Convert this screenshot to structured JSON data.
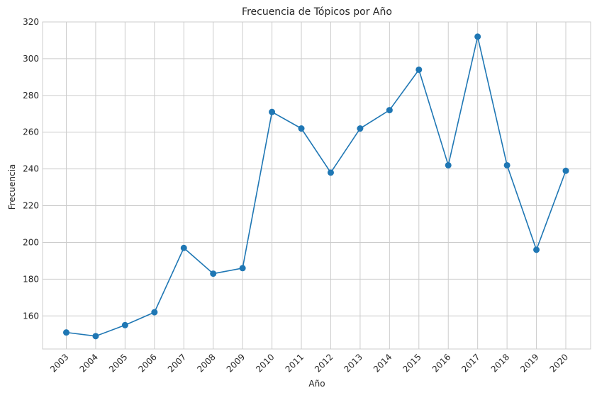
{
  "chart_data": {
    "type": "line",
    "title": "Frecuencia de Tópicos por Año",
    "xlabel": "Año",
    "ylabel": "Frecuencia",
    "x": [
      "2003",
      "2004",
      "2005",
      "2006",
      "2007",
      "2008",
      "2009",
      "2010",
      "2011",
      "2012",
      "2013",
      "2014",
      "2015",
      "2016",
      "2017",
      "2018",
      "2019",
      "2020"
    ],
    "series": [
      {
        "values": [
          151,
          149,
          155,
          162,
          197,
          183,
          186,
          271,
          262,
          238,
          262,
          272,
          294,
          242,
          312,
          242,
          196,
          239
        ],
        "color": "#1f77b4"
      }
    ],
    "ylim": [
      142,
      320
    ],
    "yticks": [
      160,
      180,
      200,
      220,
      240,
      260,
      280,
      300,
      320
    ],
    "grid": true,
    "legend": "none"
  }
}
